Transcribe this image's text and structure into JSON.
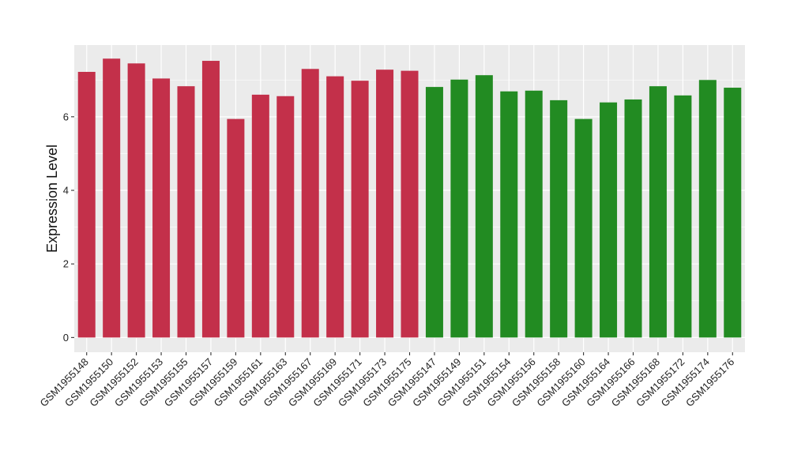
{
  "chart_data": {
    "type": "bar",
    "title": "",
    "xlabel": "",
    "ylabel": "Expression Level",
    "ylim": [
      -0.4,
      7.95
    ],
    "y_ticks": [
      0,
      2,
      4,
      6
    ],
    "y_minor_ticks": [
      1,
      3,
      5,
      7
    ],
    "grid": true,
    "legend": "none",
    "background_color": "#EBEBEB",
    "grid_color": "#FFFFFF",
    "categories": [
      "GSM1955148",
      "GSM1955150",
      "GSM1955152",
      "GSM1955153",
      "GSM1955155",
      "GSM1955157",
      "GSM1955159",
      "GSM1955161",
      "GSM1955163",
      "GSM1955167",
      "GSM1955169",
      "GSM1955171",
      "GSM1955173",
      "GSM1955175",
      "GSM1955147",
      "GSM1955149",
      "GSM1955151",
      "GSM1955154",
      "GSM1955156",
      "GSM1955158",
      "GSM1955160",
      "GSM1955164",
      "GSM1955166",
      "GSM1955168",
      "GSM1955172",
      "GSM1955174",
      "GSM1955176"
    ],
    "values": [
      7.22,
      7.58,
      7.45,
      7.04,
      6.83,
      7.52,
      5.94,
      6.6,
      6.56,
      7.3,
      7.1,
      6.98,
      7.28,
      7.25,
      6.81,
      7.01,
      7.13,
      6.69,
      6.71,
      6.45,
      5.94,
      6.39,
      6.47,
      6.83,
      6.58,
      7.0,
      6.79
    ],
    "bar_colors": [
      "#C3304A",
      "#C3304A",
      "#C3304A",
      "#C3304A",
      "#C3304A",
      "#C3304A",
      "#C3304A",
      "#C3304A",
      "#C3304A",
      "#C3304A",
      "#C3304A",
      "#C3304A",
      "#C3304A",
      "#C3304A",
      "#228B22",
      "#228B22",
      "#228B22",
      "#228B22",
      "#228B22",
      "#228B22",
      "#228B22",
      "#228B22",
      "#228B22",
      "#228B22",
      "#228B22",
      "#228B22",
      "#228B22"
    ]
  }
}
